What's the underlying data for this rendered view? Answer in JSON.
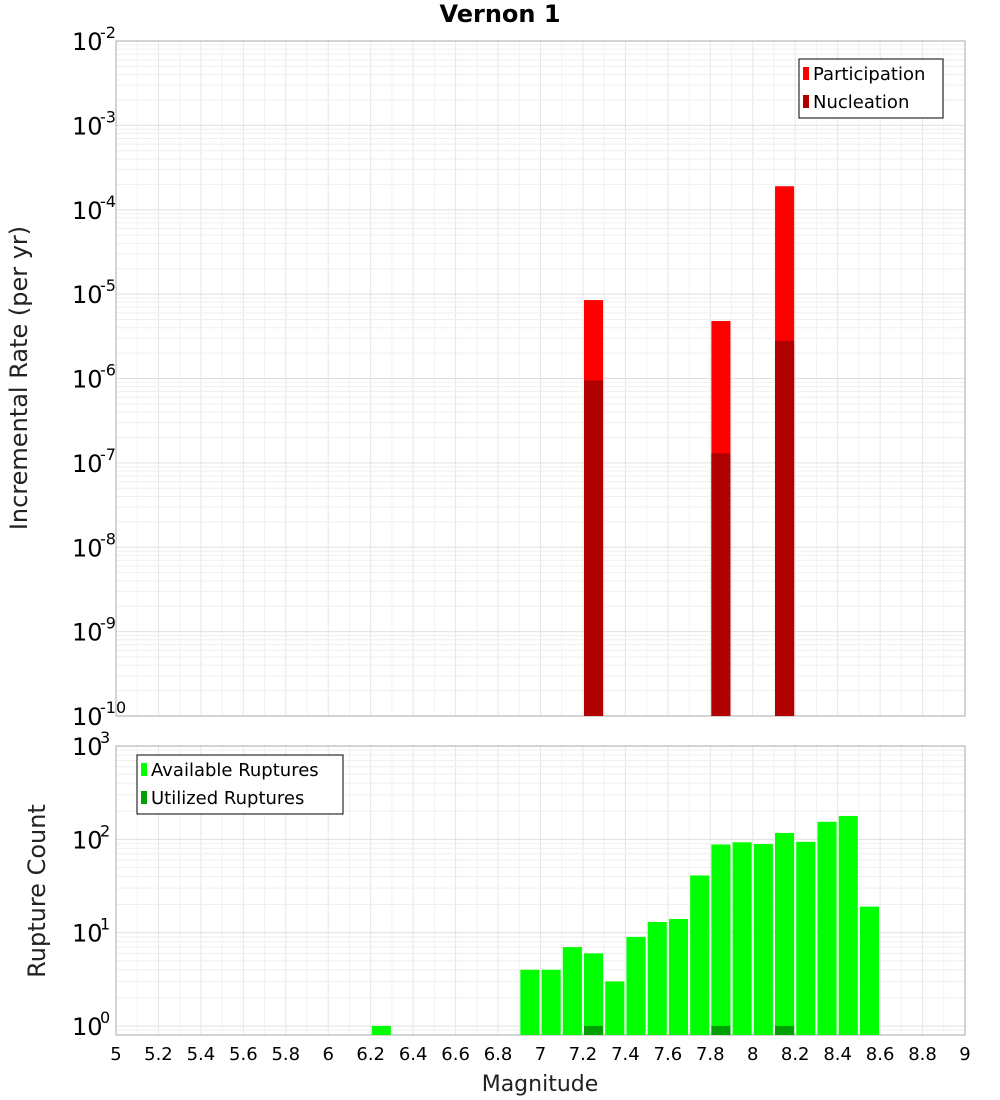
{
  "chart_data": [
    {
      "type": "bar",
      "title": "Vernon 1",
      "ylabel": "Incremental Rate (per yr)",
      "yscale": "log",
      "ylim": [
        1e-10,
        0.01
      ],
      "ytick_exponents": [
        -10,
        -9,
        -8,
        -7,
        -6,
        -5,
        -4,
        -3,
        -2
      ],
      "xlim": [
        5,
        9
      ],
      "grid": true,
      "legend_placement": "top-right",
      "series": [
        {
          "name": "Participation",
          "color": "#ff0000",
          "points": [
            {
              "x": 7.25,
              "y": 8.5e-06
            },
            {
              "x": 7.85,
              "y": 4.8e-06
            },
            {
              "x": 8.15,
              "y": 0.00019
            }
          ]
        },
        {
          "name": "Nucleation",
          "color": "#b00000",
          "points": [
            {
              "x": 7.25,
              "y": 9.5e-07
            },
            {
              "x": 7.85,
              "y": 1.3e-07
            },
            {
              "x": 8.15,
              "y": 2.8e-06
            }
          ]
        }
      ]
    },
    {
      "type": "bar",
      "ylabel": "Rupture Count",
      "xlabel": "Magnitude",
      "yscale": "log",
      "ylim": [
        0.8,
        1000
      ],
      "ytick_exponents": [
        0,
        1,
        2,
        3
      ],
      "xlim": [
        5,
        9
      ],
      "xticks": [
        "5",
        "5.2",
        "5.4",
        "5.6",
        "5.8",
        "6",
        "6.2",
        "6.4",
        "6.6",
        "6.8",
        "7",
        "7.2",
        "7.4",
        "7.6",
        "7.8",
        "8",
        "8.2",
        "8.4",
        "8.6",
        "8.8",
        "9"
      ],
      "grid": true,
      "legend_placement": "top-left",
      "series": [
        {
          "name": "Available Ruptures",
          "color": "#00ff00",
          "points": [
            {
              "x": 6.25,
              "y": 1
            },
            {
              "x": 6.95,
              "y": 4
            },
            {
              "x": 7.05,
              "y": 4
            },
            {
              "x": 7.15,
              "y": 7
            },
            {
              "x": 7.25,
              "y": 6
            },
            {
              "x": 7.35,
              "y": 3
            },
            {
              "x": 7.45,
              "y": 9
            },
            {
              "x": 7.55,
              "y": 13
            },
            {
              "x": 7.65,
              "y": 14
            },
            {
              "x": 7.75,
              "y": 41
            },
            {
              "x": 7.85,
              "y": 88
            },
            {
              "x": 7.95,
              "y": 93
            },
            {
              "x": 8.05,
              "y": 89
            },
            {
              "x": 8.15,
              "y": 117
            },
            {
              "x": 8.25,
              "y": 94
            },
            {
              "x": 8.35,
              "y": 154
            },
            {
              "x": 8.45,
              "y": 178
            },
            {
              "x": 8.55,
              "y": 19
            }
          ]
        },
        {
          "name": "Utilized Ruptures",
          "color": "#00a000",
          "points": [
            {
              "x": 7.25,
              "y": 1
            },
            {
              "x": 7.85,
              "y": 1
            },
            {
              "x": 8.15,
              "y": 1
            }
          ]
        }
      ]
    }
  ]
}
